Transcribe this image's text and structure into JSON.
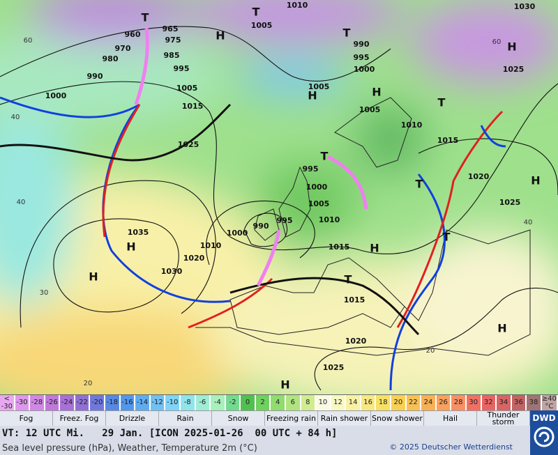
{
  "map": {
    "isobar_labels": [
      "960",
      "965",
      "975",
      "970",
      "980",
      "985",
      "990",
      "995",
      "1000",
      "1005",
      "1015",
      "1025",
      "1005",
      "990",
      "995",
      "1000",
      "1005",
      "1005",
      "1010",
      "1015",
      "1020",
      "1025",
      "1030",
      "1025",
      "1010",
      "995",
      "1000",
      "1005",
      "1010",
      "990",
      "995",
      "1000",
      "1010",
      "1020",
      "1030",
      "1035",
      "1015",
      "1015",
      "1020",
      "1025"
    ],
    "pressure_centers": [
      "T",
      "T",
      "H",
      "T",
      "H",
      "T",
      "H",
      "T",
      "T",
      "H",
      "H",
      "H",
      "H",
      "H",
      "T",
      "T",
      "H",
      "H"
    ],
    "temperature_labels": [
      "60",
      "40",
      "40",
      "30",
      "20",
      "60",
      "40",
      "20"
    ]
  },
  "color_scale": [
    {
      "top": "<",
      "label": "-30",
      "color": "#e8a8f0"
    },
    {
      "label": "-30",
      "color": "#dc98ec"
    },
    {
      "label": "-28",
      "color": "#d088e4"
    },
    {
      "label": "-26",
      "color": "#c078dc"
    },
    {
      "label": "-24",
      "color": "#a870d8"
    },
    {
      "label": "-22",
      "color": "#9070d4"
    },
    {
      "label": "-20",
      "color": "#7078dc"
    },
    {
      "label": "-18",
      "color": "#5888e4"
    },
    {
      "label": "-16",
      "color": "#5098ec"
    },
    {
      "label": "-14",
      "color": "#60acf0"
    },
    {
      "label": "-12",
      "color": "#70c0f4"
    },
    {
      "label": "-10",
      "color": "#80d4f8"
    },
    {
      "label": "-8",
      "color": "#90e4ec"
    },
    {
      "label": "-6",
      "color": "#a0ecd4"
    },
    {
      "label": "-4",
      "color": "#a8f0bc"
    },
    {
      "label": "-2",
      "color": "#74da90"
    },
    {
      "label": "0",
      "color": "#50c050"
    },
    {
      "label": "2",
      "color": "#70d060"
    },
    {
      "label": "4",
      "color": "#90dc70"
    },
    {
      "label": "6",
      "color": "#b0e480"
    },
    {
      "label": "8",
      "color": "#d0ec90"
    },
    {
      "label": "10",
      "color": "#fafae4"
    },
    {
      "label": "12",
      "color": "#f8f8c4"
    },
    {
      "label": "14",
      "color": "#f8f0a4"
    },
    {
      "label": "16",
      "color": "#f8e884"
    },
    {
      "label": "18",
      "color": "#f8e064"
    },
    {
      "label": "20",
      "color": "#f8d054"
    },
    {
      "label": "22",
      "color": "#f8c054"
    },
    {
      "label": "24",
      "color": "#f8b054"
    },
    {
      "label": "26",
      "color": "#f8a05c"
    },
    {
      "label": "28",
      "color": "#f89064"
    },
    {
      "label": "30",
      "color": "#f07064"
    },
    {
      "label": "32",
      "color": "#e86464"
    },
    {
      "label": "34",
      "color": "#d86464"
    },
    {
      "label": "36",
      "color": "#c06464"
    },
    {
      "label": "38",
      "color": "#a07474"
    },
    {
      "top": "≥40",
      "label": "°C",
      "color": "#c0a4a4"
    }
  ],
  "legend": [
    "Fog",
    "Freez. Fog",
    "Drizzle",
    "Rain",
    "Snow",
    "Freezing rain",
    "Rain shower",
    "Snow shower",
    "Hail",
    "Thunder storm"
  ],
  "footer": {
    "valid_time": "VT: 12 UTC Mi.   29 Jan. [ICON 2025-01-26  00 UTC + 84 h]",
    "subtitle": "Sea level pressure (hPa), Weather, Temperature 2m (°C)",
    "copyright": "© 2025 Deutscher Wetterdienst",
    "logo": "DWD"
  }
}
